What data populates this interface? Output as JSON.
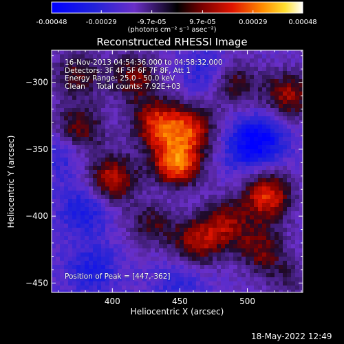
{
  "title": "Reconstructed RHESSI Image",
  "colorbar": {
    "ticks": [
      "-0.00048",
      "-0.00029",
      "-9.7e-05",
      "9.7e-05",
      "0.00029",
      "0.00048"
    ],
    "tick_values": [
      -0.00048,
      -0.00029,
      -9.7e-05,
      9.7e-05,
      0.00029,
      0.00048
    ],
    "range": [
      -0.00048,
      0.00048
    ],
    "units": "(photons cm⁻² s⁻¹ asec⁻²)"
  },
  "overlay": {
    "time": "16-Nov-2013 04:54:36.000 to 04:58:32.000",
    "detectors": "Detectors: 3F 4F 5F 6F 7F 8F, Att 1",
    "energy": "Energy Range: 25.0 - 50.0 keV",
    "clean": "Clean     Total counts: 7.92E+03",
    "peak": "Position of Peak = [447,-362]"
  },
  "footer_date": "18-May-2022 12:49",
  "chart_data": {
    "type": "heatmap",
    "title": "Reconstructed RHESSI Image",
    "xlabel": "Heliocentric X (arcsec)",
    "ylabel": "Heliocentric Y (arcsec)",
    "xlim": [
      355,
      541
    ],
    "ylim": [
      -457,
      -276
    ],
    "x_ticks": [
      400,
      450,
      500
    ],
    "y_ticks": [
      -300,
      -350,
      -400,
      -450
    ],
    "colormap": "red-temperature",
    "value_range": [
      -0.00048,
      0.00048
    ],
    "peak_position": [
      447,
      -362
    ],
    "sources": [
      {
        "x": 447,
        "y": -362,
        "amplitude": 0.00048
      },
      {
        "x": 433,
        "y": -331,
        "amplitude": 0.00036
      },
      {
        "x": 458,
        "y": -335,
        "amplitude": 0.00033
      },
      {
        "x": 400,
        "y": -372,
        "amplitude": 0.00034
      },
      {
        "x": 375,
        "y": -335,
        "amplitude": 0.00028
      },
      {
        "x": 416,
        "y": -296,
        "amplitude": 0.00026
      },
      {
        "x": 374,
        "y": -294,
        "amplitude": 0.00022
      },
      {
        "x": 515,
        "y": -385,
        "amplitude": 0.00038
      },
      {
        "x": 484,
        "y": -405,
        "amplitude": 0.00026
      },
      {
        "x": 530,
        "y": -310,
        "amplitude": 0.0003
      },
      {
        "x": 490,
        "y": -300,
        "amplitude": 0.00022
      },
      {
        "x": 462,
        "y": -420,
        "amplitude": 0.0003
      },
      {
        "x": 429,
        "y": -405,
        "amplitude": 0.0002
      },
      {
        "x": 510,
        "y": -425,
        "amplitude": 0.00024
      },
      {
        "x": 530,
        "y": -448,
        "amplitude": 0.00012
      },
      {
        "x": 380,
        "y": -395,
        "amplitude": -0.00018
      },
      {
        "x": 385,
        "y": -440,
        "amplitude": -0.00016
      },
      {
        "x": 500,
        "y": -350,
        "amplitude": -0.00018
      },
      {
        "x": 512,
        "y": -340,
        "amplitude": -0.0002
      },
      {
        "x": 450,
        "y": -448,
        "amplitude": -0.00012
      },
      {
        "x": 470,
        "y": -292,
        "amplitude": -0.00014
      },
      {
        "x": 362,
        "y": -352,
        "amplitude": -0.00014
      },
      {
        "x": 442,
        "y": -380,
        "amplitude": -8e-05
      }
    ]
  }
}
